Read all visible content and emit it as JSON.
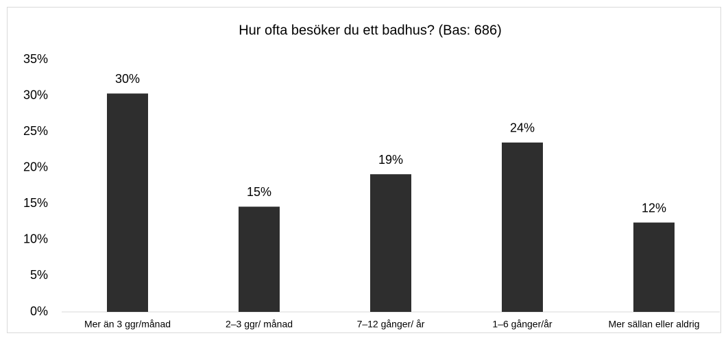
{
  "chart_data": {
    "type": "bar",
    "title": "Hur ofta besöker du ett badhus? (Bas: 686)",
    "categories": [
      "Mer än 3 ggr/månad",
      "2–3 ggr/ månad",
      "7–12 gånger/ år",
      "1–6 gånger/år",
      "Mer sällan eller aldrig"
    ],
    "values": [
      30.3,
      14.6,
      19.1,
      23.5,
      12.4
    ],
    "value_labels": [
      "30%",
      "15%",
      "19%",
      "24%",
      "12%"
    ],
    "color": "#2e2e2e",
    "ylim": [
      0,
      35
    ],
    "yticks": [
      {
        "value": 0,
        "label": "0%"
      },
      {
        "value": 5,
        "label": "5%"
      },
      {
        "value": 10,
        "label": "10%"
      },
      {
        "value": 15,
        "label": "15%"
      },
      {
        "value": 20,
        "label": "20%"
      },
      {
        "value": 25,
        "label": "25%"
      },
      {
        "value": 30,
        "label": "30%"
      },
      {
        "value": 35,
        "label": "35%"
      }
    ],
    "grid": false
  }
}
